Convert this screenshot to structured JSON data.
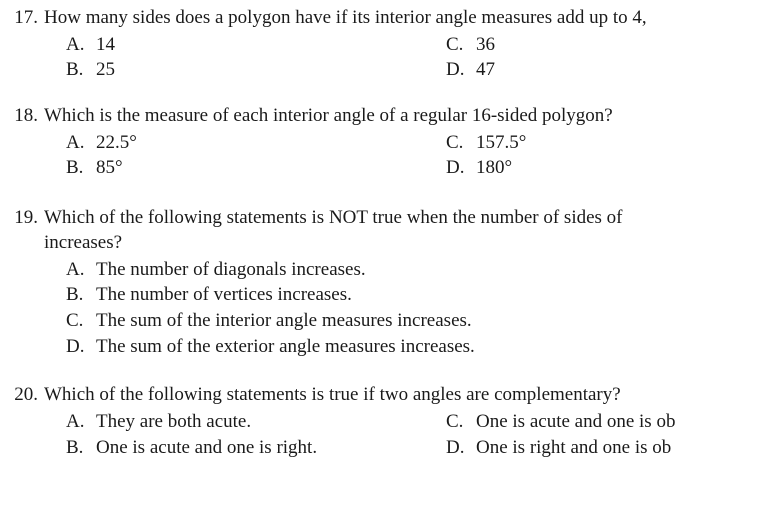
{
  "questions": [
    {
      "number": "17.",
      "stem": "How many sides does a polygon have if its interior angle measures add up to 4,",
      "options": {
        "A": {
          "letter": "A.",
          "text": "14"
        },
        "B": {
          "letter": "B.",
          "text": "25"
        },
        "C": {
          "letter": "C.",
          "text": "36"
        },
        "D": {
          "letter": "D.",
          "text": "47"
        }
      }
    },
    {
      "number": "18.",
      "stem": "Which is the measure of each interior angle of a regular 16-sided polygon?",
      "options": {
        "A": {
          "letter": "A.",
          "text": "22.5°"
        },
        "B": {
          "letter": "B.",
          "text": "85°"
        },
        "C": {
          "letter": "C.",
          "text": "157.5°"
        },
        "D": {
          "letter": "D.",
          "text": "180°"
        }
      }
    },
    {
      "number": "19.",
      "stem": "Which of the following statements is NOT true when the number of sides of",
      "stem2": "increases?",
      "options": {
        "A": {
          "letter": "A.",
          "text": "The number of diagonals increases."
        },
        "B": {
          "letter": "B.",
          "text": "The number of vertices increases."
        },
        "C": {
          "letter": "C.",
          "text": "The sum of the interior angle measures increases."
        },
        "D": {
          "letter": "D.",
          "text": "The sum of the exterior angle measures increases."
        }
      }
    },
    {
      "number": "20.",
      "stem": "Which of the following statements is true if two angles are complementary?",
      "options": {
        "A": {
          "letter": "A.",
          "text": "They are both acute."
        },
        "B": {
          "letter": "B.",
          "text": "One is acute and one is right."
        },
        "C": {
          "letter": "C.",
          "text": "One is acute and one is ob"
        },
        "D": {
          "letter": "D.",
          "text": "One is right and one is ob"
        }
      }
    }
  ]
}
